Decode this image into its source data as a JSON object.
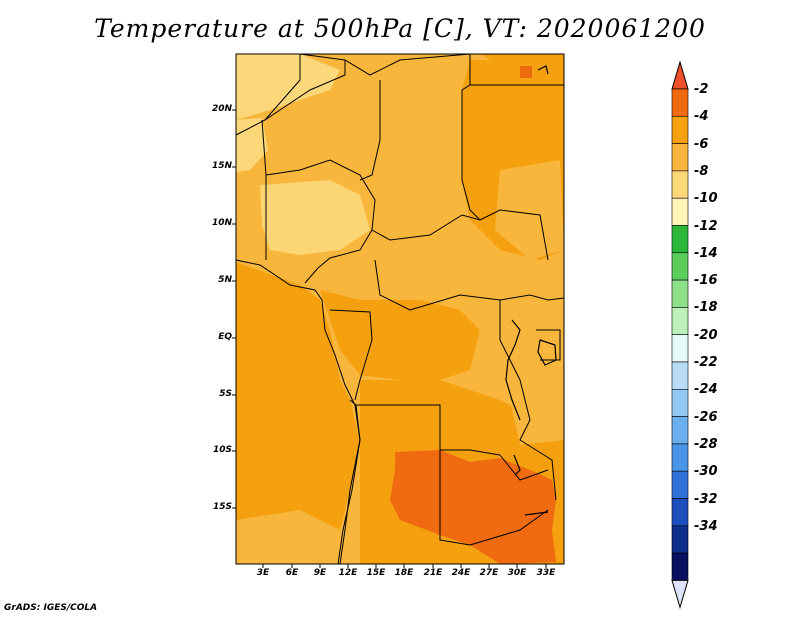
{
  "title": "Temperature at 500hPa [C], VT: 2020061200",
  "footer": "GrADS: IGES/COLA",
  "lat_ticks": [
    "20N",
    "15N",
    "10N",
    "5N",
    "EQ",
    "5S",
    "10S",
    "15S"
  ],
  "lon_ticks": [
    "3E",
    "6E",
    "9E",
    "12E",
    "15E",
    "18E",
    "21E",
    "24E",
    "27E",
    "30E",
    "33E"
  ],
  "colorbar": {
    "labels": [
      "-2",
      "-4",
      "-6",
      "-8",
      "-10",
      "-12",
      "-14",
      "-16",
      "-18",
      "-20",
      "-22",
      "-24",
      "-26",
      "-28",
      "-30",
      "-32",
      "-34"
    ],
    "colors": [
      "#f0502a",
      "#f06a10",
      "#f5a00f",
      "#f8b63c",
      "#fcd87a",
      "#fff5b8",
      "#2db83b",
      "#5ccd5c",
      "#8ee08a",
      "#bdf0b8",
      "#e6fbf8",
      "#b9ddf8",
      "#93c8f5",
      "#6db0ef",
      "#4b94e8",
      "#2f72d8",
      "#1c4fbd",
      "#0e2f8c",
      "#0a1060",
      "#dde4f8"
    ]
  },
  "map_colors": {
    "ocean_warm": "#f5a00f",
    "mid": "#f8b63c",
    "cool": "#fcd87a",
    "hot": "#f06a10",
    "border": "#000000"
  }
}
